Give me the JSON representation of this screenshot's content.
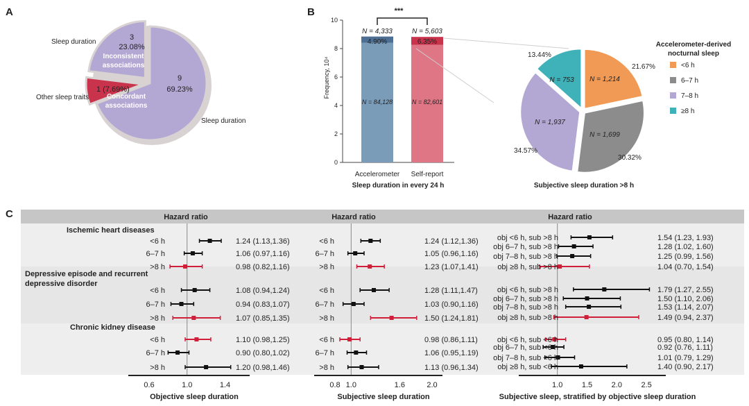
{
  "panels": {
    "a": {
      "letter": "A",
      "colors": {
        "sleep": "#b3a7d3",
        "other": "#c9334c",
        "bg": "#d9d2d2"
      }
    },
    "b": {
      "letter": "B",
      "colors": {
        "acc": "#7b9cb8",
        "self": "#de7686",
        "top_acc": "#4d6f93",
        "top_self": "#c9334c"
      }
    },
    "c": {
      "letter": "C"
    }
  },
  "chart_data": [
    {
      "type": "pie",
      "slices": [
        {
          "label": "Sleep duration",
          "value": 9,
          "count_text": "9",
          "pct_text": "69.23%",
          "color": "#b3a7d3"
        },
        {
          "label": "Sleep duration",
          "value": 3,
          "count_text": "3",
          "pct_text": "23.08%",
          "color": "#b3a7d3",
          "exploded": true
        },
        {
          "label": "Other sleep traits",
          "value": 1,
          "count_text": "1 (7.69%)",
          "pct_text": "",
          "color": "#c9334c",
          "exploded": true
        }
      ],
      "annotations": [
        "Inconsistent associations",
        "Concordant associations"
      ]
    },
    {
      "type": "bar",
      "categories": [
        "Accelerometer",
        "Self-report"
      ],
      "series": [
        {
          "values": [
            8.4128,
            8.2601
          ],
          "n_labels": [
            "N = 84,128",
            "N = 82,601"
          ]
        },
        {
          "values": [
            0.4333,
            0.5603
          ],
          "n_labels": [
            "N = 4,333",
            "N = 5,603"
          ],
          "pct_labels": [
            "4.90%",
            "6.35%"
          ]
        }
      ],
      "yticks": [
        "0",
        "2",
        "4",
        "6",
        "8",
        "10"
      ],
      "ylim": [
        0,
        10
      ],
      "ylabel": "Frequency, 10⁴",
      "xlabel": "Sleep duration in every 24 h",
      "significance": "***"
    },
    {
      "type": "pie",
      "title": "Subjective sleep duration >8 h",
      "legend_title": "Accelerometer-derived nocturnal sleep",
      "slices": [
        {
          "label": "<6 h",
          "value": 1214,
          "n_text": "N = 1,214",
          "pct_text": "21.67%",
          "color": "#f09a55"
        },
        {
          "label": "6–7 h",
          "value": 1699,
          "n_text": "N = 1,699",
          "pct_text": "30.32%",
          "color": "#8c8c8c"
        },
        {
          "label": "7–8 h",
          "value": 1937,
          "n_text": "N = 1,937",
          "pct_text": "34.57%",
          "color": "#b3a7d3"
        },
        {
          "label": "≥8 h",
          "value": 753,
          "n_text": "N = 753",
          "pct_text": "13.44%",
          "color": "#3fb1b8"
        }
      ]
    },
    {
      "type": "forest",
      "header": "Hazard ratio",
      "groups": [
        "Ischemic heart diseases",
        "Depressive episode and recurrent depressive disorder",
        "Chronic kidney disease"
      ],
      "subpanels": [
        {
          "xlabel": "Objective sleep duration",
          "xlim": [
            0.6,
            1.55
          ],
          "ticks": [
            0.6,
            1.0,
            1.4
          ],
          "tick_labels": [
            "0.6",
            "1.0",
            "1.4"
          ],
          "rows": [
            {
              "label": "<6 h",
              "hr": 1.24,
              "lo": 1.13,
              "hi": 1.36,
              "text": "1.24 (1.13,1.36)"
            },
            {
              "label": "6–7 h",
              "hr": 1.06,
              "lo": 0.97,
              "hi": 1.16,
              "text": "1.06 (0.97,1.16)"
            },
            {
              "label": ">8 h",
              "hr": 0.98,
              "lo": 0.82,
              "hi": 1.16,
              "text": "0.98 (0.82,1.16)",
              "highlight": true
            },
            {
              "label": "<6 h",
              "hr": 1.08,
              "lo": 0.94,
              "hi": 1.24,
              "text": "1.08 (0.94,1.24)"
            },
            {
              "label": "6–7 h",
              "hr": 0.94,
              "lo": 0.83,
              "hi": 1.07,
              "text": "0.94 (0.83,1.07)"
            },
            {
              "label": ">8 h",
              "hr": 1.07,
              "lo": 0.85,
              "hi": 1.35,
              "text": "1.07 (0.85,1.35)",
              "highlight": true
            },
            {
              "label": "<6 h",
              "hr": 1.1,
              "lo": 0.98,
              "hi": 1.25,
              "text": "1.10 (0.98,1.25)",
              "highlight": true
            },
            {
              "label": "6–7 h",
              "hr": 0.9,
              "lo": 0.8,
              "hi": 1.02,
              "text": "0.90 (0.80,1.02)"
            },
            {
              "label": ">8 h",
              "hr": 1.2,
              "lo": 0.98,
              "hi": 1.46,
              "text": "1.20 (0.98,1.46)"
            }
          ]
        },
        {
          "xlabel": "Subjective sleep duration",
          "xlim": [
            0.8,
            2.0
          ],
          "ticks": [
            0.8,
            1.0,
            1.6,
            2.0
          ],
          "tick_labels": [
            "0.8",
            "1.0",
            "1.6",
            "2.0"
          ],
          "rows": [
            {
              "label": "<6 h",
              "hr": 1.24,
              "lo": 1.12,
              "hi": 1.36,
              "text": "1.24 (1.12,1.36)"
            },
            {
              "label": "6–7 h",
              "hr": 1.05,
              "lo": 0.96,
              "hi": 1.16,
              "text": "1.05 (0.96,1.16)"
            },
            {
              "label": ">8 h",
              "hr": 1.23,
              "lo": 1.07,
              "hi": 1.41,
              "text": "1.23 (1.07,1.41)",
              "highlight": true
            },
            {
              "label": "<6 h",
              "hr": 1.28,
              "lo": 1.11,
              "hi": 1.47,
              "text": "1.28 (1.11,1.47)"
            },
            {
              "label": "6–7 h",
              "hr": 1.03,
              "lo": 0.9,
              "hi": 1.16,
              "text": "1.03 (0.90,1.16)"
            },
            {
              "label": ">8 h",
              "hr": 1.5,
              "lo": 1.24,
              "hi": 1.81,
              "text": "1.50 (1.24,1.81)",
              "highlight": true
            },
            {
              "label": "<6 h",
              "hr": 0.98,
              "lo": 0.86,
              "hi": 1.11,
              "text": "0.98 (0.86,1.11)",
              "highlight": true
            },
            {
              "label": "6–7 h",
              "hr": 1.06,
              "lo": 0.95,
              "hi": 1.19,
              "text": "1.06 (0.95,1.19)"
            },
            {
              "label": ">8 h",
              "hr": 1.13,
              "lo": 0.96,
              "hi": 1.34,
              "text": "1.13 (0.96,1.34)"
            }
          ]
        },
        {
          "xlabel": "Subjective sleep, stratified by objective sleep duration",
          "xlim": [
            0.7,
            2.65
          ],
          "ticks": [
            1.0,
            1.5,
            2.0,
            2.5
          ],
          "tick_labels": [
            "1.0",
            "1.5",
            "2.0",
            "2.5"
          ],
          "rows": [
            {
              "label": "obj <6 h, sub >8 h",
              "hr": 1.54,
              "lo": 1.23,
              "hi": 1.93,
              "text": "1.54 (1.23, 1.93)"
            },
            {
              "label": "obj 6–7 h, sub >8 h",
              "hr": 1.28,
              "lo": 1.02,
              "hi": 1.6,
              "text": "1.28 (1.02, 1.60)"
            },
            {
              "label": "obj 7–8 h, sub >8 h",
              "hr": 1.25,
              "lo": 0.99,
              "hi": 1.56,
              "text": "1.25 (0.99, 1.56)"
            },
            {
              "label": "obj ≥8 h, sub >8 h",
              "hr": 1.04,
              "lo": 0.7,
              "hi": 1.54,
              "text": "1.04 (0.70, 1.54)",
              "highlight": true
            },
            {
              "label": "obj <6 h, sub >8 h",
              "hr": 1.79,
              "lo": 1.27,
              "hi": 2.55,
              "text": "1.79 (1.27, 2.55)"
            },
            {
              "label": "obj 6–7 h, sub >8 h",
              "hr": 1.5,
              "lo": 1.1,
              "hi": 2.06,
              "text": "1.50 (1.10, 2.06)"
            },
            {
              "label": "obj 7–8 h, sub >8 h",
              "hr": 1.53,
              "lo": 1.14,
              "hi": 2.07,
              "text": "1.53 (1.14, 2.07)"
            },
            {
              "label": "obj ≥8 h, sub >8 h",
              "hr": 1.49,
              "lo": 0.94,
              "hi": 2.37,
              "text": "1.49 (0.94, 2.37)",
              "highlight": true
            },
            {
              "label": "obj <6 h, sub <6 h",
              "hr": 0.95,
              "lo": 0.8,
              "hi": 1.14,
              "text": "0.95 (0.80, 1.14)",
              "highlight": true
            },
            {
              "label": "obj 6–7 h, sub <6 h",
              "hr": 0.92,
              "lo": 0.76,
              "hi": 1.11,
              "text": "0.92 (0.76, 1.11)"
            },
            {
              "label": "obj 7–8 h, sub <6 h",
              "hr": 1.01,
              "lo": 0.79,
              "hi": 1.29,
              "text": "1.01 (0.79, 1.29)"
            },
            {
              "label": "obj ≥8 h, sub <6 h",
              "hr": 1.4,
              "lo": 0.9,
              "hi": 2.17,
              "text": "1.40 (0.90, 2.17)"
            }
          ]
        }
      ]
    }
  ]
}
